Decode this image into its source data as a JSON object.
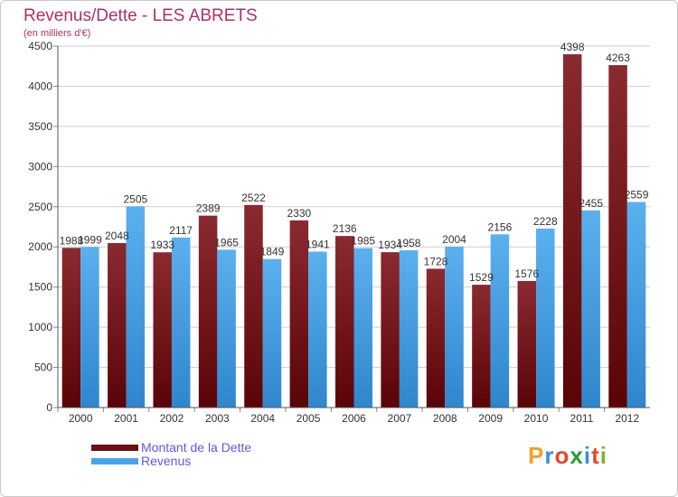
{
  "header": {
    "title": "Revenus/Dette - LES ABRETS",
    "subtitle": "(en milliers d'€)"
  },
  "legend": {
    "items": [
      {
        "label": "Montant de la Dette",
        "color": "#6b0f14"
      },
      {
        "label": "Revenus",
        "color": "#4aa3e6"
      }
    ]
  },
  "brand": {
    "letters": [
      "P",
      "r",
      "o",
      "x",
      "i",
      "t",
      "i"
    ],
    "colors": [
      "#f0a02a",
      "#3a8ee0",
      "#e04a2a",
      "#2a9a3a",
      "#3a8ee0",
      "#e04a2a",
      "#7ab52a"
    ]
  },
  "chart_data": {
    "type": "bar",
    "categories": [
      "2000",
      "2001",
      "2002",
      "2003",
      "2004",
      "2005",
      "2006",
      "2007",
      "2008",
      "2009",
      "2010",
      "2011",
      "2012"
    ],
    "series": [
      {
        "name": "Montant de la Dette",
        "values": [
          1988,
          2048,
          1933,
          2389,
          2522,
          2330,
          2136,
          1934,
          1728,
          1529,
          1576,
          4398,
          4263
        ],
        "color": "#6b0f14"
      },
      {
        "name": "Revenus",
        "values": [
          1999,
          2505,
          2117,
          1965,
          1849,
          1941,
          1985,
          1958,
          2004,
          2156,
          2228,
          2455,
          2559
        ],
        "color": "#4aa3e6"
      }
    ],
    "ylim": [
      0,
      4500
    ],
    "yticks": [
      0,
      500,
      1000,
      1500,
      2000,
      2500,
      3000,
      3500,
      4000,
      4500
    ],
    "grid": true,
    "title": "Revenus/Dette - LES ABRETS",
    "ylabel": "(en milliers d'€)"
  }
}
